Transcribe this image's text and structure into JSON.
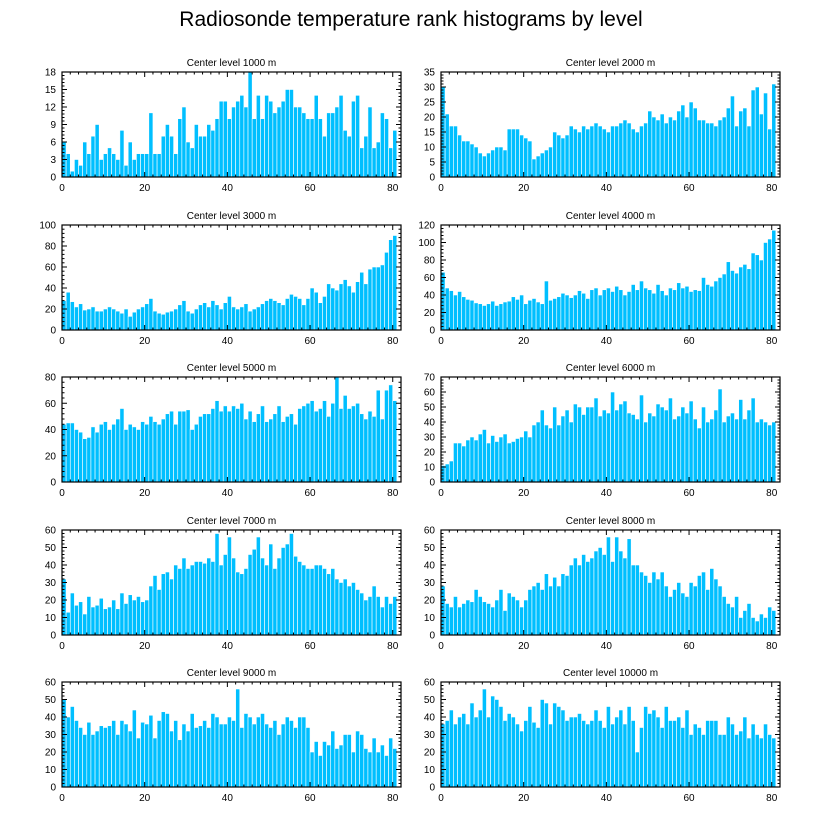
{
  "figure": {
    "title": "Radiosonde temperature rank histograms by level"
  },
  "style": {
    "bar_color": "#00BFFF",
    "bar_edge": "#ffffff",
    "axis_color": "#000000"
  },
  "chart_data": [
    {
      "type": "bar",
      "title": "Center level 1000 m",
      "x_start": 0,
      "xlim": [
        0,
        82
      ],
      "xticks": [
        0,
        20,
        40,
        60,
        80
      ],
      "ylim": [
        0,
        18
      ],
      "yticks": [
        0,
        3,
        6,
        9,
        12,
        15,
        18
      ],
      "values": [
        6,
        4,
        1,
        3,
        2,
        6,
        4,
        7,
        9,
        3,
        4,
        5,
        4,
        3,
        8,
        2,
        6,
        3,
        4,
        4,
        4,
        11,
        4,
        4,
        7,
        9,
        7,
        4,
        10,
        12,
        6,
        5,
        9,
        7,
        7,
        9,
        8,
        10,
        13,
        13,
        10,
        12,
        13,
        14,
        12,
        18,
        10,
        14,
        10,
        14,
        13,
        11,
        12,
        13,
        15,
        15,
        12,
        12,
        11,
        10,
        10,
        14,
        10,
        7,
        11,
        11,
        12,
        14,
        8,
        7,
        13,
        14,
        5,
        7,
        12,
        5,
        6,
        11,
        10,
        5,
        8
      ]
    },
    {
      "type": "bar",
      "title": "Center level 2000 m",
      "x_start": 0,
      "xlim": [
        0,
        82
      ],
      "xticks": [
        0,
        20,
        40,
        60,
        80
      ],
      "ylim": [
        0,
        35
      ],
      "yticks": [
        0,
        5,
        10,
        15,
        20,
        25,
        30,
        35
      ],
      "values": [
        30,
        21,
        17,
        17,
        14,
        12,
        12,
        11,
        10,
        8,
        7,
        8,
        9,
        10,
        10,
        9,
        16,
        16,
        16,
        14,
        13,
        12,
        6,
        7,
        8,
        9,
        10,
        15,
        14,
        13,
        14,
        17,
        16,
        15,
        17,
        16,
        17,
        18,
        17,
        16,
        15,
        17,
        17,
        18,
        19,
        18,
        16,
        15,
        17,
        18,
        22,
        20,
        19,
        21,
        18,
        20,
        19,
        22,
        24,
        20,
        25,
        23,
        19,
        19,
        18,
        18,
        17,
        19,
        20,
        23,
        27,
        17,
        22,
        23,
        17,
        29,
        30,
        21,
        28,
        16,
        31
      ]
    },
    {
      "type": "bar",
      "title": "Center level 3000 m",
      "x_start": 0,
      "xlim": [
        0,
        82
      ],
      "xticks": [
        0,
        20,
        40,
        60,
        80
      ],
      "ylim": [
        0,
        100
      ],
      "yticks": [
        0,
        20,
        40,
        60,
        80,
        100
      ],
      "values": [
        28,
        36,
        27,
        22,
        25,
        19,
        20,
        22,
        18,
        18,
        20,
        22,
        20,
        18,
        16,
        20,
        13,
        17,
        20,
        22,
        25,
        30,
        18,
        16,
        15,
        17,
        18,
        20,
        24,
        28,
        18,
        16,
        20,
        24,
        26,
        22,
        28,
        24,
        20,
        26,
        32,
        22,
        20,
        22,
        25,
        18,
        20,
        22,
        25,
        28,
        30,
        28,
        26,
        24,
        30,
        34,
        32,
        30,
        24,
        30,
        40,
        36,
        26,
        32,
        44,
        40,
        38,
        44,
        48,
        42,
        36,
        46,
        55,
        44,
        58,
        60,
        60,
        62,
        74,
        86,
        90
      ]
    },
    {
      "type": "bar",
      "title": "Center level 4000 m",
      "x_start": 0,
      "xlim": [
        0,
        82
      ],
      "xticks": [
        0,
        20,
        40,
        60,
        80
      ],
      "ylim": [
        0,
        120
      ],
      "yticks": [
        0,
        20,
        40,
        60,
        80,
        100,
        120
      ],
      "values": [
        66,
        48,
        45,
        40,
        44,
        38,
        35,
        34,
        31,
        30,
        28,
        30,
        33,
        28,
        30,
        32,
        33,
        38,
        35,
        40,
        30,
        34,
        36,
        32,
        30,
        56,
        34,
        36,
        38,
        42,
        40,
        37,
        40,
        45,
        42,
        36,
        46,
        48,
        40,
        46,
        48,
        44,
        50,
        46,
        40,
        44,
        52,
        46,
        56,
        48,
        46,
        42,
        52,
        45,
        40,
        48,
        46,
        54,
        48,
        50,
        44,
        46,
        45,
        60,
        52,
        50,
        56,
        60,
        64,
        78,
        68,
        65,
        72,
        75,
        70,
        88,
        86,
        80,
        100,
        104,
        114
      ]
    },
    {
      "type": "bar",
      "title": "Center level 5000 m",
      "x_start": 0,
      "xlim": [
        0,
        82
      ],
      "xticks": [
        0,
        20,
        40,
        60,
        80
      ],
      "ylim": [
        0,
        80
      ],
      "yticks": [
        0,
        20,
        40,
        60,
        80
      ],
      "values": [
        44,
        45,
        45,
        40,
        38,
        33,
        34,
        42,
        38,
        44,
        46,
        40,
        44,
        48,
        56,
        40,
        44,
        42,
        40,
        46,
        44,
        50,
        46,
        44,
        48,
        52,
        54,
        44,
        54,
        54,
        55,
        40,
        44,
        50,
        52,
        52,
        56,
        62,
        54,
        58,
        54,
        58,
        56,
        60,
        48,
        54,
        46,
        52,
        58,
        46,
        48,
        52,
        58,
        46,
        50,
        52,
        44,
        56,
        58,
        60,
        62,
        54,
        56,
        62,
        50,
        60,
        80,
        56,
        66,
        56,
        58,
        60,
        52,
        48,
        54,
        50,
        70,
        48,
        70,
        74,
        62
      ]
    },
    {
      "type": "bar",
      "title": "Center level 6000 m",
      "x_start": 0,
      "xlim": [
        0,
        82
      ],
      "xticks": [
        0,
        20,
        40,
        60,
        80
      ],
      "ylim": [
        0,
        70
      ],
      "yticks": [
        0,
        10,
        20,
        30,
        40,
        50,
        60,
        70
      ],
      "values": [
        11,
        12,
        14,
        26,
        26,
        24,
        28,
        30,
        28,
        32,
        35,
        26,
        31,
        27,
        30,
        32,
        26,
        27,
        29,
        30,
        34,
        30,
        38,
        40,
        48,
        38,
        36,
        50,
        38,
        44,
        48,
        40,
        52,
        50,
        45,
        50,
        50,
        56,
        44,
        48,
        46,
        60,
        48,
        52,
        54,
        46,
        45,
        42,
        58,
        40,
        46,
        44,
        52,
        50,
        48,
        56,
        42,
        44,
        50,
        46,
        54,
        42,
        36,
        50,
        40,
        42,
        48,
        62,
        40,
        44,
        46,
        42,
        55,
        42,
        48,
        56,
        40,
        42,
        40,
        38,
        40
      ]
    },
    {
      "type": "bar",
      "title": "Center level 7000 m",
      "x_start": 0,
      "xlim": [
        0,
        82
      ],
      "xticks": [
        0,
        20,
        40,
        60,
        80
      ],
      "ylim": [
        0,
        60
      ],
      "yticks": [
        0,
        10,
        20,
        30,
        40,
        50,
        60
      ],
      "values": [
        32,
        13,
        24,
        17,
        19,
        12,
        22,
        16,
        17,
        21,
        15,
        16,
        20,
        15,
        24,
        18,
        23,
        20,
        22,
        19,
        20,
        28,
        34,
        26,
        35,
        36,
        32,
        40,
        38,
        44,
        38,
        40,
        42,
        42,
        41,
        44,
        42,
        58,
        40,
        46,
        56,
        44,
        36,
        35,
        38,
        46,
        49,
        56,
        44,
        40,
        52,
        38,
        44,
        50,
        52,
        58,
        45,
        42,
        40,
        38,
        38,
        40,
        40,
        38,
        35,
        38,
        32,
        30,
        32,
        28,
        30,
        26,
        24,
        20,
        22,
        28,
        22,
        16,
        22,
        18,
        22
      ]
    },
    {
      "type": "bar",
      "title": "Center level 8000 m",
      "x_start": 0,
      "xlim": [
        0,
        82
      ],
      "xticks": [
        0,
        20,
        40,
        60,
        80
      ],
      "ylim": [
        0,
        60
      ],
      "yticks": [
        0,
        10,
        20,
        30,
        40,
        50,
        60
      ],
      "values": [
        28,
        18,
        16,
        22,
        16,
        18,
        20,
        19,
        26,
        22,
        19,
        18,
        16,
        20,
        26,
        14,
        24,
        22,
        20,
        16,
        20,
        26,
        28,
        30,
        26,
        35,
        28,
        33,
        28,
        35,
        34,
        40,
        44,
        40,
        46,
        42,
        44,
        48,
        50,
        46,
        56,
        42,
        56,
        48,
        44,
        55,
        40,
        40,
        36,
        34,
        30,
        36,
        32,
        36,
        28,
        22,
        26,
        30,
        24,
        22,
        30,
        28,
        34,
        36,
        26,
        38,
        32,
        28,
        22,
        18,
        16,
        22,
        10,
        14,
        18,
        10,
        8,
        12,
        10,
        16,
        14
      ]
    },
    {
      "type": "bar",
      "title": "Center level 9000 m",
      "x_start": 0,
      "xlim": [
        0,
        82
      ],
      "xticks": [
        0,
        20,
        40,
        60,
        80
      ],
      "ylim": [
        0,
        60
      ],
      "yticks": [
        0,
        10,
        20,
        30,
        40,
        50,
        60
      ],
      "values": [
        50,
        40,
        46,
        38,
        34,
        30,
        37,
        30,
        32,
        35,
        34,
        35,
        38,
        30,
        38,
        36,
        32,
        44,
        28,
        37,
        36,
        41,
        28,
        38,
        43,
        42,
        32,
        38,
        27,
        36,
        32,
        42,
        34,
        35,
        38,
        34,
        42,
        40,
        36,
        36,
        40,
        38,
        56,
        34,
        42,
        40,
        36,
        40,
        42,
        36,
        34,
        38,
        30,
        36,
        40,
        38,
        34,
        40,
        40,
        34,
        20,
        26,
        18,
        26,
        24,
        32,
        22,
        24,
        30,
        30,
        20,
        32,
        30,
        22,
        20,
        28,
        20,
        24,
        18,
        28,
        22
      ]
    },
    {
      "type": "bar",
      "title": "Center level 10000 m",
      "x_start": 0,
      "xlim": [
        0,
        82
      ],
      "xticks": [
        0,
        20,
        40,
        60,
        80
      ],
      "ylim": [
        0,
        60
      ],
      "yticks": [
        0,
        10,
        20,
        30,
        40,
        50,
        60
      ],
      "values": [
        36,
        38,
        44,
        36,
        40,
        42,
        36,
        48,
        40,
        44,
        56,
        40,
        52,
        50,
        46,
        38,
        42,
        40,
        36,
        32,
        38,
        46,
        37,
        34,
        50,
        48,
        36,
        48,
        46,
        44,
        38,
        40,
        40,
        42,
        38,
        36,
        38,
        44,
        38,
        34,
        46,
        36,
        40,
        44,
        36,
        46,
        38,
        20,
        34,
        46,
        42,
        44,
        40,
        34,
        46,
        38,
        38,
        40,
        34,
        44,
        30,
        36,
        34,
        30,
        38,
        38,
        38,
        30,
        30,
        40,
        36,
        30,
        32,
        40,
        28,
        36,
        30,
        28,
        36,
        30,
        28
      ]
    }
  ]
}
